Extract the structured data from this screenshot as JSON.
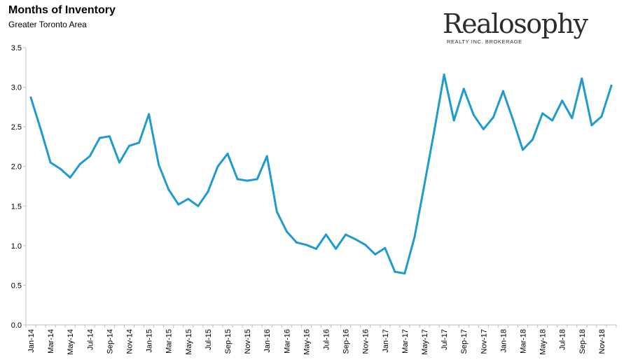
{
  "header": {
    "title": "Months of Inventory",
    "subtitle": "Greater Toronto Area"
  },
  "brand": {
    "name": "Realosophy",
    "tagline": "REALTY INC. BROKERAGE"
  },
  "colors": {
    "line": "#1f9bcf",
    "axis": "#bfbfbf",
    "brand": "#2d2d2d"
  },
  "chart_data": {
    "type": "line",
    "title": "Months of Inventory",
    "subtitle": "Greater Toronto Area",
    "xlabel": "",
    "ylabel": "",
    "ylim": [
      0,
      3.5
    ],
    "yticks": [
      "0.0",
      "0.5",
      "1.0",
      "1.5",
      "2.0",
      "2.5",
      "3.0",
      "3.5"
    ],
    "grid": false,
    "x": [
      "Jan-14",
      "Feb-14",
      "Mar-14",
      "Apr-14",
      "May-14",
      "Jun-14",
      "Jul-14",
      "Aug-14",
      "Sep-14",
      "Oct-14",
      "Nov-14",
      "Dec-14",
      "Jan-15",
      "Feb-15",
      "Mar-15",
      "Apr-15",
      "May-15",
      "Jun-15",
      "Jul-15",
      "Aug-15",
      "Sep-15",
      "Oct-15",
      "Nov-15",
      "Dec-15",
      "Jan-16",
      "Feb-16",
      "Mar-16",
      "Apr-16",
      "May-16",
      "Jun-16",
      "Jul-16",
      "Aug-16",
      "Sep-16",
      "Oct-16",
      "Nov-16",
      "Dec-16",
      "Jan-17",
      "Feb-17",
      "Mar-17",
      "Apr-17",
      "May-17",
      "Jun-17",
      "Jul-17",
      "Aug-17",
      "Sep-17",
      "Oct-17",
      "Nov-17",
      "Dec-17",
      "Jan-18",
      "Feb-18",
      "Mar-18",
      "Apr-18",
      "May-18",
      "Jun-18",
      "Jul-18",
      "Aug-18",
      "Sep-18",
      "Oct-18",
      "Nov-18",
      "Dec-18"
    ],
    "xticks": [
      "Jan-14",
      "Mar-14",
      "May-14",
      "Jul-14",
      "Sep-14",
      "Nov-14",
      "Jan-15",
      "Mar-15",
      "May-15",
      "Jul-15",
      "Sep-15",
      "Nov-15",
      "Jan-16",
      "Mar-16",
      "May-16",
      "Jul-16",
      "Sep-16",
      "Nov-16",
      "Jan-17",
      "Mar-17",
      "May-17",
      "Jul-17",
      "Sep-17",
      "Nov-17",
      "Jan-18",
      "Mar-18",
      "May-18",
      "Jul-18",
      "Sep-18",
      "Nov-18"
    ],
    "series": [
      {
        "values": [
          2.87,
          2.47,
          2.05,
          1.97,
          1.86,
          2.03,
          2.13,
          2.36,
          2.38,
          2.05,
          2.26,
          2.3,
          2.66,
          2.02,
          1.71,
          1.52,
          1.59,
          1.5,
          1.68,
          2.0,
          2.16,
          1.84,
          1.82,
          1.84,
          2.13,
          1.43,
          1.18,
          1.04,
          1.01,
          0.96,
          1.14,
          0.96,
          1.14,
          1.08,
          1.01,
          0.89,
          0.97,
          0.67,
          0.65,
          1.11,
          1.77,
          2.45,
          3.16,
          2.58,
          2.98,
          2.65,
          2.47,
          2.62,
          2.95,
          2.59,
          2.21,
          2.34,
          2.67,
          2.58,
          2.83,
          2.61,
          3.11,
          2.52,
          2.63,
          3.02
        ]
      }
    ]
  }
}
